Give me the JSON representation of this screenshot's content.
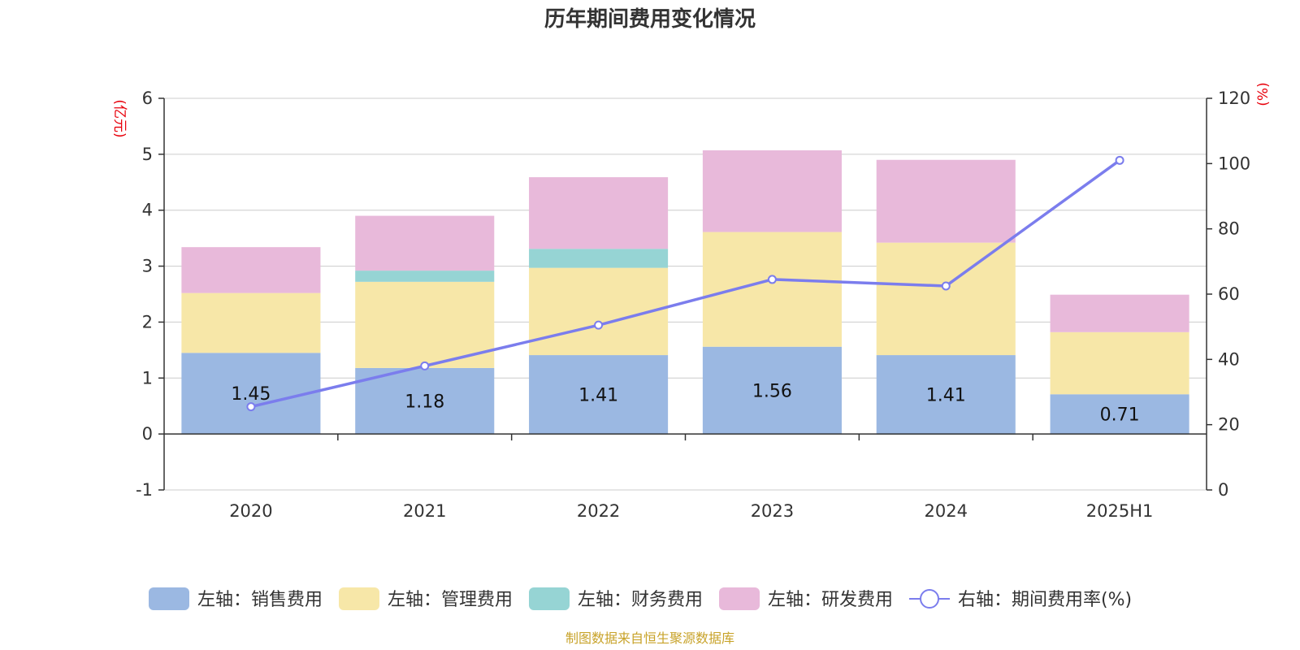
{
  "title": "历年期间费用变化情况",
  "source": "制图数据来自恒生聚源数据库",
  "chart_data": {
    "type": "bar",
    "stacked": true,
    "categories": [
      "2020",
      "2021",
      "2022",
      "2023",
      "2024",
      "2025H1"
    ],
    "left_axis": {
      "unit": "(亿元)",
      "ylim": [
        -1,
        6
      ],
      "ticks": [
        "-1",
        "0",
        "1",
        "2",
        "3",
        "4",
        "5",
        "6"
      ]
    },
    "right_axis": {
      "unit": "(%)",
      "ylim": [
        0,
        120
      ],
      "ticks": [
        "0",
        "20",
        "40",
        "60",
        "80",
        "100",
        "120"
      ]
    },
    "series": [
      {
        "name": "左轴：销售费用",
        "axis": "left",
        "color": "#9bb8e2",
        "values": [
          1.45,
          1.18,
          1.41,
          1.56,
          1.41,
          0.71
        ],
        "labels": [
          "1.45",
          "1.18",
          "1.41",
          "1.56",
          "1.41",
          "0.71"
        ]
      },
      {
        "name": "左轴：管理费用",
        "axis": "left",
        "color": "#f7e7a8",
        "values": [
          1.07,
          1.54,
          1.56,
          2.05,
          2.01,
          1.11
        ]
      },
      {
        "name": "左轴：财务费用",
        "axis": "left",
        "color": "#96d4d4",
        "values": [
          0.0,
          0.2,
          0.34,
          0.0,
          -0.01,
          0.0
        ]
      },
      {
        "name": "左轴：研发费用",
        "axis": "left",
        "color": "#e8b9da",
        "values": [
          0.82,
          0.98,
          1.28,
          1.46,
          1.48,
          0.67
        ]
      },
      {
        "name": "右轴：期间费用率(%)",
        "axis": "right",
        "type": "line",
        "color": "#7b7ded",
        "values": [
          25.5,
          38,
          50.5,
          64.5,
          62.5,
          101
        ]
      }
    ],
    "grid": true
  }
}
